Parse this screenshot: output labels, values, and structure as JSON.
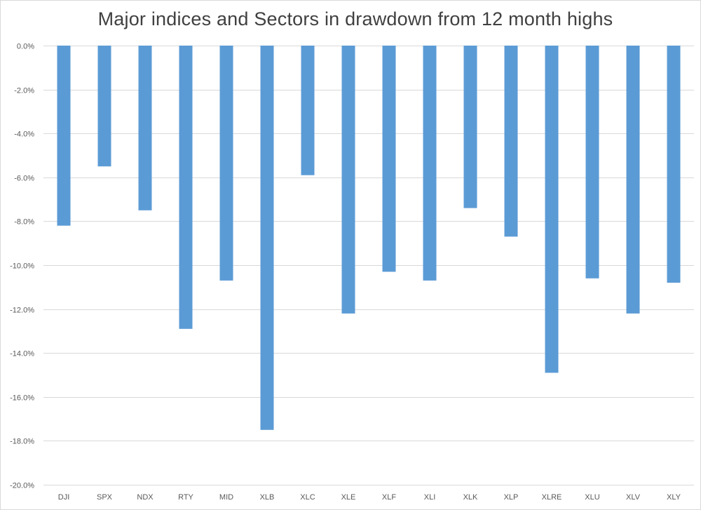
{
  "chart_data": {
    "type": "bar",
    "title": "Major indices and Sectors in drawdown from 12 month highs",
    "xlabel": "",
    "ylabel": "",
    "categories": [
      "DJI",
      "SPX",
      "NDX",
      "RTY",
      "MID",
      "XLB",
      "XLC",
      "XLE",
      "XLF",
      "XLI",
      "XLK",
      "XLP",
      "XLRE",
      "XLU",
      "XLV",
      "XLY"
    ],
    "values": [
      -8.2,
      -5.5,
      -7.5,
      -12.9,
      -10.7,
      -17.5,
      -5.9,
      -12.2,
      -10.3,
      -10.7,
      -7.4,
      -8.7,
      -14.9,
      -10.6,
      -12.2,
      -10.8
    ],
    "ylim": [
      -20,
      0
    ],
    "yticks": [
      0,
      -2,
      -4,
      -6,
      -8,
      -10,
      -12,
      -14,
      -16,
      -18,
      -20
    ],
    "ytick_labels": [
      "0.0%",
      "-2.0%",
      "-4.0%",
      "-6.0%",
      "-8.0%",
      "-10.0%",
      "-12.0%",
      "-14.0%",
      "-16.0%",
      "-18.0%",
      "-20.0%"
    ],
    "grid": true,
    "legend": "none",
    "bar_color": "#5b9bd5",
    "gridline_color": "#d9d9d9"
  }
}
